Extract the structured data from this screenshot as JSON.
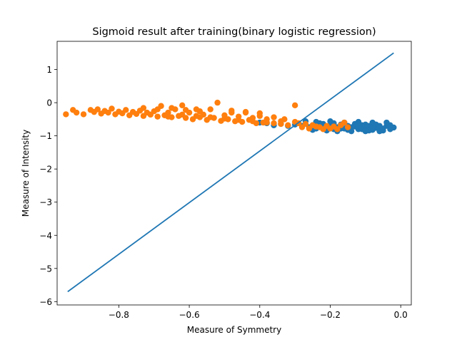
{
  "chart_data": {
    "type": "scatter",
    "title": "Sigmoid result after training(binary logistic regression)",
    "xlabel": "Measure of Symmetry",
    "ylabel": "Measure of Intensity",
    "xlim": [
      -0.975,
      0.03
    ],
    "ylim": [
      -6.1,
      1.85
    ],
    "xticks": [
      -0.8,
      -0.6,
      -0.4,
      -0.2,
      0.0
    ],
    "xtick_labels": [
      "−0.8",
      "−0.6",
      "−0.4",
      "−0.2",
      "0.0"
    ],
    "yticks": [
      -6,
      -5,
      -4,
      -3,
      -2,
      -1,
      0,
      1
    ],
    "ytick_labels": [
      "−6",
      "−5",
      "−4",
      "−3",
      "−2",
      "−1",
      "0",
      "1"
    ],
    "grid": false,
    "colors": {
      "blue": "#1f77b4",
      "orange": "#ff7f0e"
    },
    "series": [
      {
        "color": "#1f77b4",
        "marker": "circle",
        "points": [
          [
            -0.02,
            -0.75
          ],
          [
            -0.03,
            -0.8
          ],
          [
            -0.04,
            -0.7
          ],
          [
            -0.05,
            -0.78
          ],
          [
            -0.06,
            -0.72
          ],
          [
            -0.07,
            -0.76
          ],
          [
            -0.08,
            -0.82
          ],
          [
            -0.09,
            -0.7
          ],
          [
            -0.1,
            -0.74
          ],
          [
            -0.11,
            -0.68
          ],
          [
            -0.12,
            -0.8
          ],
          [
            -0.13,
            -0.72
          ],
          [
            -0.14,
            -0.76
          ],
          [
            -0.15,
            -0.7
          ],
          [
            -0.16,
            -0.78
          ],
          [
            -0.17,
            -0.66
          ],
          [
            -0.18,
            -0.74
          ],
          [
            -0.19,
            -0.8
          ],
          [
            -0.2,
            -0.7
          ],
          [
            -0.21,
            -0.76
          ],
          [
            -0.22,
            -0.64
          ],
          [
            -0.23,
            -0.72
          ],
          [
            -0.24,
            -0.78
          ],
          [
            -0.25,
            -0.68
          ],
          [
            -0.26,
            -0.74
          ],
          [
            -0.28,
            -0.7
          ],
          [
            -0.3,
            -0.66
          ],
          [
            -0.32,
            -0.7
          ],
          [
            -0.34,
            -0.64
          ],
          [
            -0.36,
            -0.68
          ],
          [
            -0.38,
            -0.62
          ],
          [
            -0.4,
            -0.6
          ],
          [
            -0.03,
            -0.68
          ],
          [
            -0.05,
            -0.84
          ],
          [
            -0.07,
            -0.66
          ],
          [
            -0.09,
            -0.84
          ],
          [
            -0.11,
            -0.8
          ],
          [
            -0.13,
            -0.64
          ],
          [
            -0.15,
            -0.82
          ],
          [
            -0.17,
            -0.78
          ],
          [
            -0.19,
            -0.62
          ],
          [
            -0.21,
            -0.84
          ],
          [
            -0.23,
            -0.62
          ],
          [
            -0.25,
            -0.82
          ],
          [
            -0.08,
            -0.6
          ],
          [
            -0.12,
            -0.58
          ],
          [
            -0.16,
            -0.6
          ],
          [
            -0.2,
            -0.56
          ],
          [
            -0.24,
            -0.58
          ],
          [
            -0.27,
            -0.56
          ],
          [
            -0.04,
            -0.6
          ],
          [
            -0.06,
            -0.86
          ],
          [
            -0.1,
            -0.86
          ],
          [
            -0.14,
            -0.86
          ],
          [
            -0.18,
            -0.86
          ],
          [
            -0.06,
            -0.7
          ],
          [
            -0.08,
            -0.74
          ],
          [
            -0.1,
            -0.66
          ],
          [
            -0.12,
            -0.7
          ],
          [
            -0.14,
            -0.74
          ]
        ]
      },
      {
        "color": "#ff7f0e",
        "marker": "circle",
        "points": [
          [
            -0.95,
            -0.35
          ],
          [
            -0.93,
            -0.22
          ],
          [
            -0.92,
            -0.3
          ],
          [
            -0.9,
            -0.35
          ],
          [
            -0.88,
            -0.22
          ],
          [
            -0.87,
            -0.28
          ],
          [
            -0.86,
            -0.2
          ],
          [
            -0.85,
            -0.33
          ],
          [
            -0.84,
            -0.25
          ],
          [
            -0.83,
            -0.3
          ],
          [
            -0.82,
            -0.18
          ],
          [
            -0.81,
            -0.35
          ],
          [
            -0.8,
            -0.27
          ],
          [
            -0.79,
            -0.32
          ],
          [
            -0.78,
            -0.22
          ],
          [
            -0.77,
            -0.38
          ],
          [
            -0.76,
            -0.28
          ],
          [
            -0.75,
            -0.34
          ],
          [
            -0.74,
            -0.24
          ],
          [
            -0.73,
            -0.4
          ],
          [
            -0.72,
            -0.3
          ],
          [
            -0.71,
            -0.36
          ],
          [
            -0.7,
            -0.26
          ],
          [
            -0.69,
            -0.42
          ],
          [
            -0.68,
            -0.1
          ],
          [
            -0.67,
            -0.38
          ],
          [
            -0.66,
            -0.3
          ],
          [
            -0.65,
            -0.44
          ],
          [
            -0.64,
            -0.2
          ],
          [
            -0.63,
            -0.4
          ],
          [
            -0.62,
            -0.08
          ],
          [
            -0.61,
            -0.46
          ],
          [
            -0.6,
            -0.3
          ],
          [
            -0.59,
            -0.5
          ],
          [
            -0.58,
            -0.2
          ],
          [
            -0.57,
            -0.44
          ],
          [
            -0.56,
            -0.36
          ],
          [
            -0.55,
            -0.52
          ],
          [
            -0.54,
            -0.2
          ],
          [
            -0.53,
            -0.46
          ],
          [
            -0.52,
            0.0
          ],
          [
            -0.51,
            -0.55
          ],
          [
            -0.5,
            -0.38
          ],
          [
            -0.49,
            -0.5
          ],
          [
            -0.48,
            -0.3
          ],
          [
            -0.47,
            -0.56
          ],
          [
            -0.46,
            -0.42
          ],
          [
            -0.45,
            -0.58
          ],
          [
            -0.44,
            -0.3
          ],
          [
            -0.43,
            -0.52
          ],
          [
            -0.42,
            -0.46
          ],
          [
            -0.41,
            -0.62
          ],
          [
            -0.4,
            -0.4
          ],
          [
            -0.39,
            -0.6
          ],
          [
            -0.38,
            -0.5
          ],
          [
            -0.36,
            -0.62
          ],
          [
            -0.34,
            -0.56
          ],
          [
            -0.32,
            -0.68
          ],
          [
            -0.3,
            -0.58
          ],
          [
            -0.3,
            -0.08
          ],
          [
            -0.28,
            -0.74
          ],
          [
            -0.27,
            -0.64
          ],
          [
            -0.26,
            -0.78
          ],
          [
            -0.24,
            -0.72
          ],
          [
            -0.22,
            -0.8
          ],
          [
            -0.21,
            -0.7
          ],
          [
            -0.2,
            -0.78
          ],
          [
            -0.19,
            -0.72
          ],
          [
            -0.18,
            -0.8
          ],
          [
            -0.15,
            -0.74
          ],
          [
            -0.66,
            -0.42
          ],
          [
            -0.62,
            -0.36
          ],
          [
            -0.58,
            -0.4
          ],
          [
            -0.54,
            -0.44
          ],
          [
            -0.5,
            -0.48
          ],
          [
            -0.46,
            -0.52
          ],
          [
            -0.42,
            -0.56
          ],
          [
            -0.38,
            -0.6
          ],
          [
            -0.34,
            -0.64
          ],
          [
            -0.57,
            -0.26
          ],
          [
            -0.61,
            -0.22
          ],
          [
            -0.65,
            -0.16
          ],
          [
            -0.69,
            -0.2
          ],
          [
            -0.73,
            -0.16
          ],
          [
            -0.48,
            -0.24
          ],
          [
            -0.44,
            -0.28
          ],
          [
            -0.4,
            -0.32
          ],
          [
            -0.36,
            -0.44
          ],
          [
            -0.33,
            -0.5
          ],
          [
            -0.29,
            -0.62
          ],
          [
            -0.25,
            -0.68
          ],
          [
            -0.23,
            -0.74
          ],
          [
            -0.17,
            -0.68
          ],
          [
            -0.16,
            -0.6
          ]
        ]
      }
    ],
    "lines": [
      {
        "color": "#1f77b4",
        "x": [
          -0.945,
          -0.02
        ],
        "y": [
          -5.7,
          1.5
        ]
      }
    ]
  }
}
